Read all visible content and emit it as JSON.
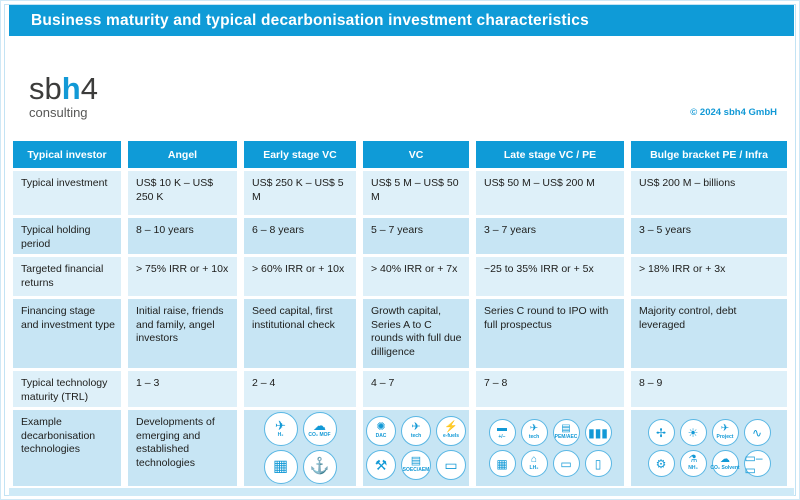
{
  "title": "Business maturity and typical decarbonisation investment characteristics",
  "logo": {
    "sb": "sb",
    "h": "h",
    "four": "4",
    "subtitle": "consulting"
  },
  "copyright": "© 2024 sbh4 GmbH",
  "colors": {
    "brand_blue": "#0f9bd7",
    "icon_blue": "#1299d6",
    "row_light": "#def0f9",
    "row_dark": "#c7e5f4",
    "footer_band": "#cfeaf7"
  },
  "table": {
    "columns": [
      "Typical investor",
      "Angel",
      "Early stage VC",
      "VC",
      "Late stage VC / PE",
      "Bulge bracket PE / Infra"
    ],
    "rows": [
      {
        "label": "Typical investment",
        "cells": [
          "US$ 10 K – US$ 250 K",
          "US$ 250 K – US$ 5 M",
          "US$ 5 M – US$ 50 M",
          "US$ 50 M – US$ 200 M",
          "US$ 200 M – billions"
        ]
      },
      {
        "label": "Typical holding period",
        "cells": [
          "8 – 10 years",
          "6 – 8 years",
          "5 – 7 years",
          "3 – 7 years",
          "3 – 5 years"
        ]
      },
      {
        "label": "Targeted financial returns",
        "cells": [
          "> 75% IRR or + 10x",
          "> 60% IRR or + 10x",
          "> 40% IRR or + 7x",
          "~25 to 35% IRR or + 5x",
          "> 18% IRR or + 3x"
        ]
      },
      {
        "label": "Financing stage and investment type",
        "cells": [
          "Initial raise, friends and family, angel investors",
          "Seed capital, first institutional check",
          "Growth capital, Series A to C rounds with full due dilligence",
          "Series C round to IPO with full prospectus",
          "Majority control, debt leveraged"
        ]
      },
      {
        "label": "Typical technology maturity (TRL)",
        "cells": [
          "1 – 3",
          "2 – 4",
          "4 – 7",
          "7 – 8",
          "8 – 9"
        ]
      },
      {
        "label": "Example decarbonisation technologies",
        "cells": [
          "Developments of emerging and established technologies",
          {
            "cols": 2,
            "icons": [
              {
                "name": "hydrogen-aviation-icon",
                "glyph": "✈",
                "label": "H₂"
              },
              {
                "name": "co2-mof-capture-icon",
                "glyph": "☁",
                "label": "CO₂ MOF"
              },
              {
                "name": "sorbent-membrane-icon",
                "glyph": "▦",
                "label": ""
              },
              {
                "name": "ship-transport-icon",
                "glyph": "⚓",
                "label": ""
              }
            ]
          },
          {
            "cols": 3,
            "icons": [
              {
                "name": "dac-fan-icon",
                "glyph": "✺",
                "label": "DAC"
              },
              {
                "name": "aviation-tech-icon",
                "glyph": "✈",
                "label": "tech"
              },
              {
                "name": "e-fuels-pump-icon",
                "glyph": "⚡",
                "label": "e-fuels"
              },
              {
                "name": "drilling-rig-icon",
                "glyph": "⚒",
                "label": ""
              },
              {
                "name": "soec-aem-electrolyser-icon",
                "glyph": "▤",
                "label": "SOEC/AEM"
              },
              {
                "name": "bus-icon",
                "glyph": "▭",
                "label": ""
              }
            ]
          },
          {
            "cols": 4,
            "icons": [
              {
                "name": "battery-icon",
                "glyph": "▬",
                "label": "+/−"
              },
              {
                "name": "aviation-tech-icon",
                "glyph": "✈",
                "label": "tech"
              },
              {
                "name": "pem-aec-electrolyser-icon",
                "glyph": "▤",
                "label": "PEM/AEC"
              },
              {
                "name": "gas-cylinders-icon",
                "glyph": "▮▮▮",
                "label": ""
              },
              {
                "name": "electrolyser-array-icon",
                "glyph": "▦",
                "label": ""
              },
              {
                "name": "lh2-storage-dome-icon",
                "glyph": "⌂",
                "label": "LH₂"
              },
              {
                "name": "truck-icon",
                "glyph": "▭",
                "label": ""
              },
              {
                "name": "storage-tank-icon",
                "glyph": "▯",
                "label": ""
              }
            ]
          },
          {
            "cols": 4,
            "icons": [
              {
                "name": "wind-turbine-icon",
                "glyph": "✢",
                "label": ""
              },
              {
                "name": "solar-panel-icon",
                "glyph": "☀",
                "label": ""
              },
              {
                "name": "aviation-project-icon",
                "glyph": "✈",
                "label": "Project"
              },
              {
                "name": "molecule-pipeline-icon",
                "glyph": "∿",
                "label": ""
              },
              {
                "name": "gear-process-icon",
                "glyph": "⚙",
                "label": ""
              },
              {
                "name": "nh3-flask-icon",
                "glyph": "⚗",
                "label": "NH₃"
              },
              {
                "name": "co2-solvent-icon",
                "glyph": "☁",
                "label": "CO₂ Solvent"
              },
              {
                "name": "process-flow-icon",
                "glyph": "▭–▭",
                "label": ""
              }
            ]
          }
        ]
      }
    ]
  }
}
